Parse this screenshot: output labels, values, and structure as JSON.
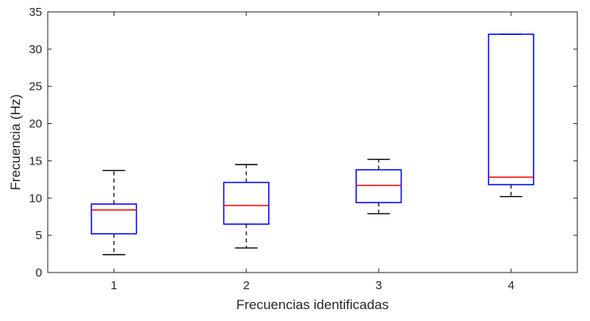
{
  "chart_data": {
    "type": "boxplot",
    "title": "",
    "xlabel": "Frecuencias identificadas",
    "ylabel": "Frecuencia (Hz)",
    "categories": [
      "1",
      "2",
      "3",
      "4"
    ],
    "ylim": [
      0,
      35
    ],
    "yticks": [
      0,
      5,
      10,
      15,
      20,
      25,
      30,
      35
    ],
    "grid": false,
    "colors": {
      "box": "#0000ff",
      "median": "#ff0000",
      "whisker": "#000000",
      "axes": "#262626"
    },
    "boxes": [
      {
        "category": "1",
        "min": 2.4,
        "q1": 5.2,
        "median": 8.4,
        "q3": 9.2,
        "max": 13.7
      },
      {
        "category": "2",
        "min": 3.3,
        "q1": 6.5,
        "median": 9.0,
        "q3": 12.1,
        "max": 14.5
      },
      {
        "category": "3",
        "min": 7.9,
        "q1": 9.4,
        "median": 11.7,
        "q3": 13.8,
        "max": 15.2
      },
      {
        "category": "4",
        "min": 10.2,
        "q1": 11.8,
        "median": 12.8,
        "q3": 32.0,
        "max": 32.0
      }
    ]
  }
}
